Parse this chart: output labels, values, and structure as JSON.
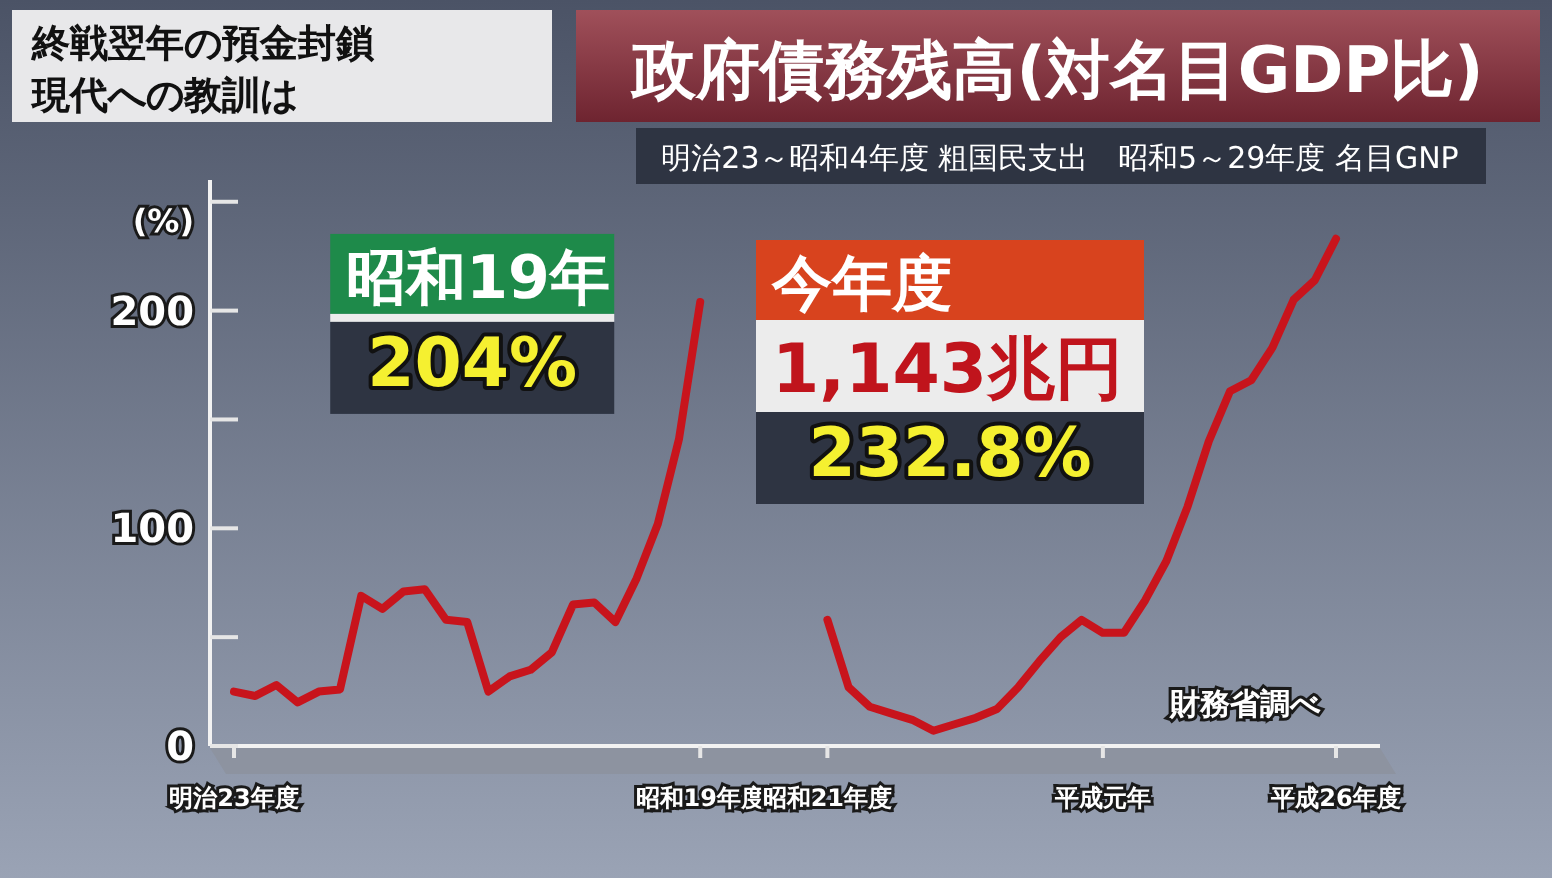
{
  "chart_data": {
    "type": "line",
    "title": "政府債務残高(対名目GDP比)",
    "subtitle": "明治23～昭和4年度 粗国民支出　昭和5～29年度 名目GNP",
    "ylabel": "(%)",
    "annotations": [
      "終戦翌年の預金封鎖",
      "現代への教訓は",
      {
        "text": "昭和19年\n204%",
        "x": "昭和19年度",
        "y": 204
      },
      "今年度\n1,143兆円\n232.8%",
      "財務省調べ"
    ],
    "categories": [
      "明治23年度",
      null,
      null,
      null,
      null,
      null,
      null,
      null,
      null,
      null,
      null,
      null,
      null,
      null,
      null,
      null,
      null,
      null,
      null,
      null,
      null,
      null,
      "昭和19年度",
      null,
      null,
      null,
      null,
      null,
      "昭和21年度",
      null,
      null,
      null,
      null,
      null,
      null,
      null,
      null,
      null,
      null,
      null,
      null,
      "平成元年",
      null,
      null,
      null,
      null,
      null,
      null,
      null,
      null,
      null,
      null,
      "平成26年度"
    ],
    "series": [
      {
        "color": "#c8141c",
        "values": [
          25,
          23,
          28,
          20,
          25,
          26,
          69,
          63,
          71,
          72,
          58,
          57,
          25,
          32,
          35,
          43,
          65,
          66,
          57,
          77,
          102,
          141,
          204,
          null,
          null,
          null,
          null,
          null,
          58,
          27,
          18,
          15,
          12,
          7,
          10,
          13,
          17,
          27,
          39,
          50,
          58,
          52,
          52,
          67,
          85,
          110,
          140,
          163,
          168,
          183,
          205,
          214,
          233
        ]
      }
    ],
    "ylim": [
      0,
      260
    ],
    "yticks": [
      0,
      {
        "value": 50,
        "label": null
      },
      100,
      {
        "value": 150,
        "label": null
      },
      200,
      {
        "value": 250,
        "label": null
      }
    ],
    "marker": "none",
    "line_style": "solid"
  }
}
